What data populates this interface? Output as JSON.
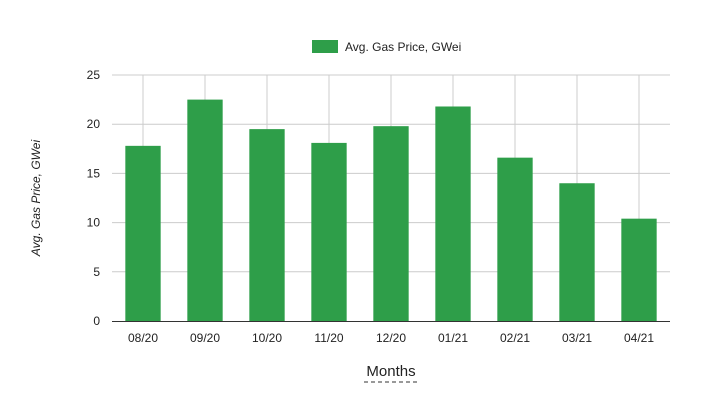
{
  "chart_data": {
    "type": "bar",
    "categories": [
      "08/20",
      "09/20",
      "10/20",
      "11/20",
      "12/20",
      "01/21",
      "02/21",
      "03/21",
      "04/21"
    ],
    "series": [
      {
        "name": "Avg. Gas Price, GWei",
        "values": [
          17.8,
          22.5,
          19.5,
          18.1,
          19.8,
          21.8,
          16.6,
          14.0,
          10.4
        ],
        "color": "#2e9e49"
      }
    ],
    "title": "",
    "xlabel": "Months",
    "ylabel": "Avg. Gas Price, GWei",
    "ylim": [
      0,
      25
    ],
    "yticks": [
      0,
      5,
      10,
      15,
      20,
      25
    ],
    "grid": true,
    "legend": "top-center"
  }
}
